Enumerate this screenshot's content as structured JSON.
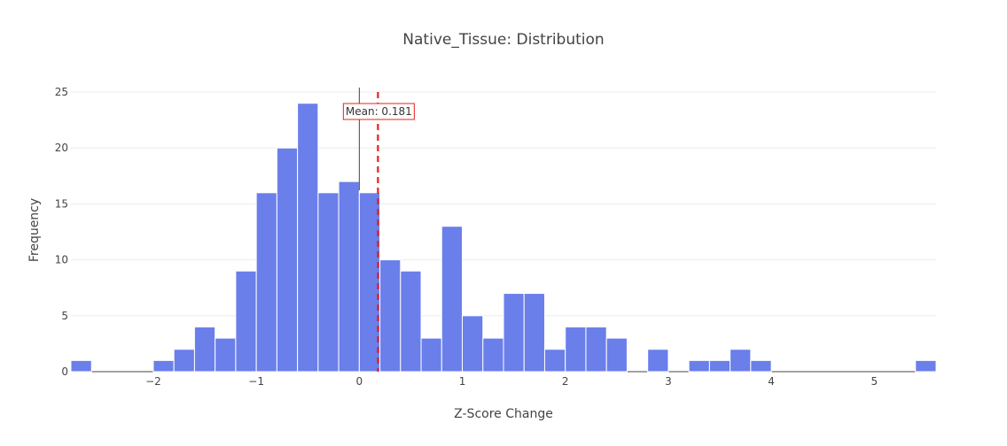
{
  "chart_data": {
    "type": "bar",
    "title": "Native_Tissue: Distribution",
    "xlabel": "Z-Score Change",
    "ylabel": "Frequency",
    "x_range": [
      -2.8,
      5.6
    ],
    "ylim": [
      0,
      25.4
    ],
    "bin_width": 0.2,
    "bin_start": -2.8,
    "values": [
      1,
      0,
      0,
      0,
      1,
      2,
      4,
      3,
      9,
      16,
      20,
      24,
      16,
      17,
      16,
      10,
      9,
      3,
      13,
      5,
      3,
      7,
      7,
      2,
      4,
      4,
      3,
      0,
      2,
      0,
      1,
      1,
      2,
      1,
      0,
      0,
      0,
      0,
      0,
      0,
      0,
      1
    ],
    "x_ticks": [
      {
        "value": -2,
        "label": "−2"
      },
      {
        "value": -1,
        "label": "−1"
      },
      {
        "value": 0,
        "label": "0"
      },
      {
        "value": 1,
        "label": "1"
      },
      {
        "value": 2,
        "label": "2"
      },
      {
        "value": 3,
        "label": "3"
      },
      {
        "value": 4,
        "label": "4"
      },
      {
        "value": 5,
        "label": "5"
      }
    ],
    "y_ticks": [
      {
        "value": 0,
        "label": "0"
      },
      {
        "value": 5,
        "label": "5"
      },
      {
        "value": 10,
        "label": "10"
      },
      {
        "value": 15,
        "label": "15"
      },
      {
        "value": 20,
        "label": "20"
      },
      {
        "value": 25,
        "label": "25"
      }
    ],
    "grid": true,
    "bar_color": "#6a7fea",
    "mean": {
      "value": 0.181,
      "label": "Mean: 0.181",
      "line_color": "#e8201c",
      "style": "dashed"
    }
  }
}
